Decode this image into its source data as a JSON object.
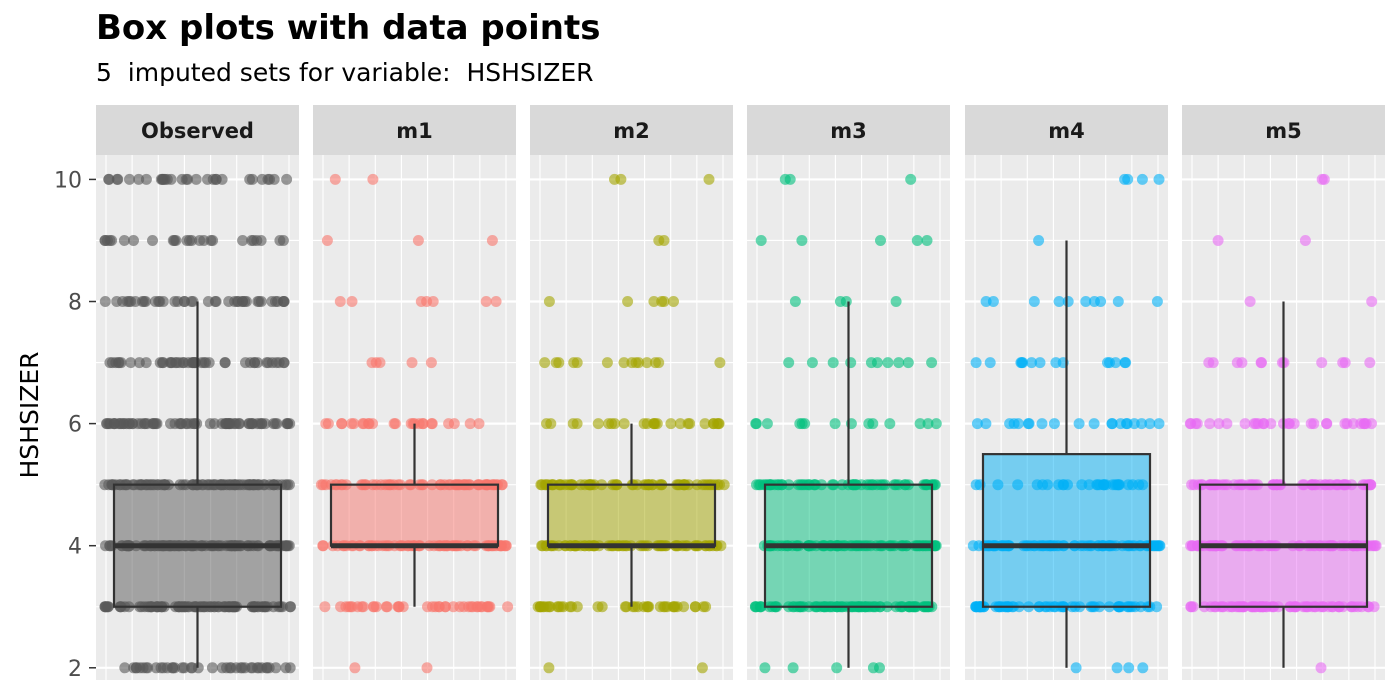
{
  "chart_data": {
    "type": "box",
    "title": "Box plots with data points",
    "subtitle": "5  imputed sets for variable:  HSHSIZER",
    "xlabel": "",
    "ylabel": "HSHSIZER",
    "ylim": [
      1.8,
      10.4
    ],
    "y_ticks": [
      2,
      4,
      6,
      8,
      10
    ],
    "panels": [
      {
        "name": "Observed",
        "color": "#595959",
        "box": {
          "lower_whisker": 2,
          "q1": 3,
          "median": 4,
          "q3": 5,
          "upper_whisker": 8
        },
        "points": [
          {
            "y": 2,
            "count": 40
          },
          {
            "y": 3,
            "count": 90
          },
          {
            "y": 4,
            "count": 100
          },
          {
            "y": 5,
            "count": 90
          },
          {
            "y": 6,
            "count": 70
          },
          {
            "y": 7,
            "count": 45
          },
          {
            "y": 8,
            "count": 40
          },
          {
            "y": 9,
            "count": 25
          },
          {
            "y": 10,
            "count": 30
          }
        ]
      },
      {
        "name": "m1",
        "color": "#F8766D",
        "box": {
          "lower_whisker": 3,
          "q1": 4,
          "median": 4,
          "q3": 5,
          "upper_whisker": 6
        },
        "points": [
          {
            "y": 2,
            "count": 2
          },
          {
            "y": 3,
            "count": 40
          },
          {
            "y": 4,
            "count": 70
          },
          {
            "y": 5,
            "count": 60
          },
          {
            "y": 6,
            "count": 25
          },
          {
            "y": 7,
            "count": 5
          },
          {
            "y": 8,
            "count": 7
          },
          {
            "y": 9,
            "count": 3
          },
          {
            "y": 10,
            "count": 2
          }
        ]
      },
      {
        "name": "m2",
        "color": "#A3A500",
        "box": {
          "lower_whisker": 3,
          "q1": 4,
          "median": 4,
          "q3": 5,
          "upper_whisker": 6
        },
        "points": [
          {
            "y": 2,
            "count": 2
          },
          {
            "y": 3,
            "count": 40
          },
          {
            "y": 4,
            "count": 70
          },
          {
            "y": 5,
            "count": 60
          },
          {
            "y": 6,
            "count": 25
          },
          {
            "y": 7,
            "count": 14
          },
          {
            "y": 8,
            "count": 6
          },
          {
            "y": 9,
            "count": 2
          },
          {
            "y": 10,
            "count": 3
          }
        ]
      },
      {
        "name": "m3",
        "color": "#00BF7D",
        "box": {
          "lower_whisker": 2,
          "q1": 3,
          "median": 4,
          "q3": 5,
          "upper_whisker": 8
        },
        "points": [
          {
            "y": 2,
            "count": 5
          },
          {
            "y": 3,
            "count": 80
          },
          {
            "y": 4,
            "count": 80
          },
          {
            "y": 5,
            "count": 60
          },
          {
            "y": 6,
            "count": 14
          },
          {
            "y": 7,
            "count": 10
          },
          {
            "y": 8,
            "count": 4
          },
          {
            "y": 9,
            "count": 5
          },
          {
            "y": 10,
            "count": 3
          }
        ]
      },
      {
        "name": "m4",
        "color": "#00B0F6",
        "box": {
          "lower_whisker": 2,
          "q1": 3,
          "median": 4,
          "q3": 5.5,
          "upper_whisker": 9
        },
        "points": [
          {
            "y": 2,
            "count": 4
          },
          {
            "y": 3,
            "count": 60
          },
          {
            "y": 4,
            "count": 80
          },
          {
            "y": 5,
            "count": 30
          },
          {
            "y": 6,
            "count": 20
          },
          {
            "y": 7,
            "count": 14
          },
          {
            "y": 8,
            "count": 10
          },
          {
            "y": 9,
            "count": 1
          },
          {
            "y": 10,
            "count": 4
          }
        ]
      },
      {
        "name": "m5",
        "color": "#E76BF3",
        "box": {
          "lower_whisker": 2,
          "q1": 3,
          "median": 4,
          "q3": 5,
          "upper_whisker": 8
        },
        "points": [
          {
            "y": 2,
            "count": 1
          },
          {
            "y": 3,
            "count": 70
          },
          {
            "y": 4,
            "count": 80
          },
          {
            "y": 5,
            "count": 60
          },
          {
            "y": 6,
            "count": 30
          },
          {
            "y": 7,
            "count": 12
          },
          {
            "y": 8,
            "count": 2
          },
          {
            "y": 9,
            "count": 2
          },
          {
            "y": 10,
            "count": 2
          }
        ]
      }
    ],
    "grid": true,
    "panel_background": "#EBEBEB",
    "strip_background": "#D9D9D9"
  }
}
